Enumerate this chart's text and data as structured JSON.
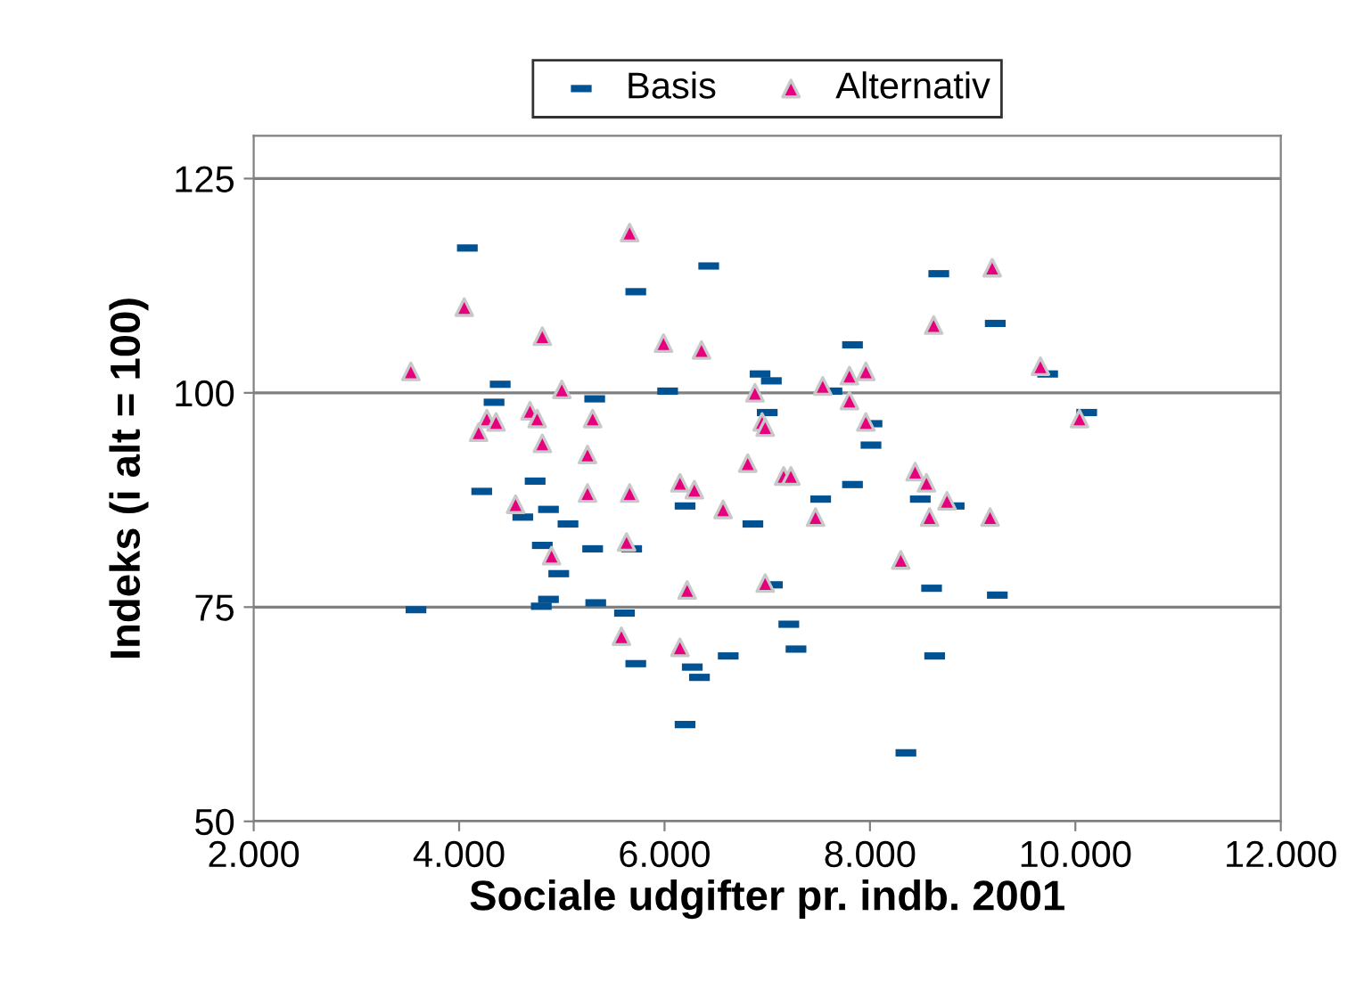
{
  "chart_data": {
    "type": "scatter",
    "xlabel": "Sociale udgifter pr. indb. 2001",
    "ylabel": "Indeks (i alt = 100)",
    "xlim": [
      2000,
      12000
    ],
    "ylim": [
      50,
      130
    ],
    "xticks": [
      {
        "value": 2000,
        "label": "2.000"
      },
      {
        "value": 4000,
        "label": "4.000"
      },
      {
        "value": 6000,
        "label": "6.000"
      },
      {
        "value": 8000,
        "label": "8.000"
      },
      {
        "value": 10000,
        "label": "10.000"
      },
      {
        "value": 12000,
        "label": "12.000"
      }
    ],
    "yticks": [
      50,
      75,
      100,
      125
    ],
    "grid": "y",
    "legend": "top",
    "series": [
      {
        "name": "Basis",
        "color": "#005293",
        "marker": "square",
        "x": [
          4080,
          4400,
          4340,
          5320,
          5720,
          6030,
          6430,
          4220,
          4740,
          4870,
          4620,
          6200,
          5060,
          4810,
          5300,
          5680,
          4970,
          4870,
          4800,
          5330,
          3580,
          5610,
          5720,
          6270,
          6340,
          6200,
          8670,
          9220,
          7830,
          6930,
          7040,
          7630,
          7000,
          8020,
          8010,
          7830,
          7520,
          8490,
          8820,
          6860,
          7050,
          8600,
          9240,
          7210,
          7280,
          6620,
          8630,
          8350,
          9730,
          10110
        ],
        "values": [
          116.9,
          101.0,
          98.9,
          99.3,
          111.8,
          100.2,
          114.8,
          88.5,
          89.7,
          86.4,
          85.5,
          86.8,
          84.7,
          82.2,
          81.8,
          81.8,
          78.9,
          75.9,
          75.1,
          75.5,
          74.7,
          74.3,
          68.4,
          68.0,
          66.8,
          61.3,
          113.9,
          108.1,
          105.6,
          102.2,
          101.4,
          100.2,
          97.7,
          96.4,
          93.9,
          89.3,
          87.6,
          87.6,
          86.8,
          84.7,
          77.6,
          77.2,
          76.4,
          73.0,
          70.1,
          69.3,
          69.3,
          58.0,
          102.2,
          97.7
        ]
      },
      {
        "name": "Alternativ",
        "color": "#e6007e",
        "marker": "triangle",
        "x": [
          5660,
          4050,
          4810,
          5990,
          6360,
          3530,
          5000,
          4270,
          4360,
          4690,
          4760,
          5300,
          4190,
          4810,
          5250,
          6150,
          6290,
          5250,
          5660,
          4550,
          5630,
          4900,
          6220,
          5580,
          6150,
          9190,
          8620,
          7960,
          7800,
          7540,
          6880,
          7800,
          7960,
          6950,
          6980,
          6810,
          7160,
          7230,
          8440,
          8550,
          8750,
          6570,
          7470,
          8580,
          9170,
          8300,
          6980,
          9660,
          10040
        ],
        "values": [
          118.7,
          110.0,
          106.6,
          105.8,
          105.0,
          102.5,
          100.4,
          97.0,
          96.6,
          97.9,
          97.0,
          97.0,
          95.4,
          94.1,
          92.8,
          89.5,
          88.7,
          88.3,
          88.3,
          87.0,
          82.6,
          81.0,
          77.0,
          71.6,
          70.3,
          114.6,
          107.9,
          102.5,
          102.0,
          100.8,
          100.0,
          99.1,
          96.6,
          96.6,
          96.0,
          91.8,
          90.3,
          90.3,
          90.8,
          89.5,
          87.4,
          86.4,
          85.5,
          85.5,
          85.5,
          80.5,
          77.8,
          103.1,
          97.0
        ]
      }
    ]
  }
}
